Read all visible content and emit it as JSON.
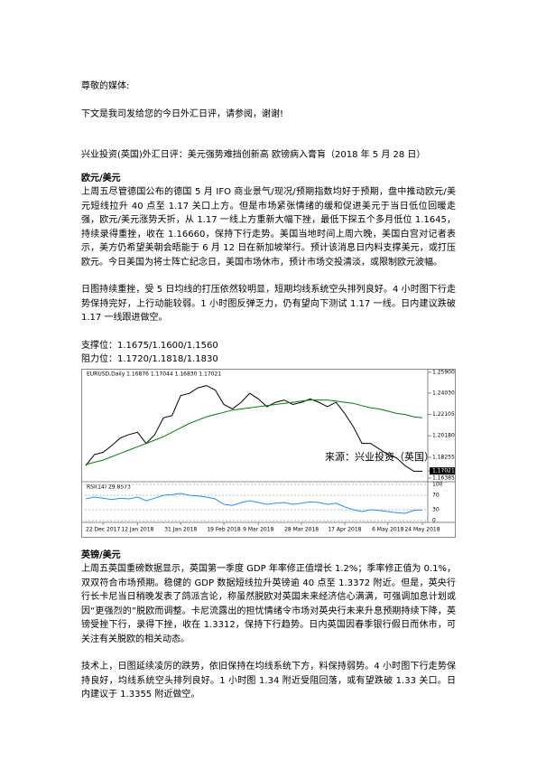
{
  "greeting": "尊敬的媒体:",
  "intro": "下文是我司发给您的今日外汇日评，请参阅，谢谢!",
  "headline": "兴业投资(英国)外汇日评：美元强势难挡创新高 欧镑病入膏肓（2018 年 5 月 28 日）",
  "sections": [
    {
      "heading": "欧元/美元",
      "paragraphs": [
        "上周五尽管德国公布的德国 5 月 IFO 商业景气/现况/预期指数均好于预期，盘中推动欧元/美元短线拉升 40 点至 1.17 关口上方。但是市场紧张情绪的缓和促进美元于当日低位回暖走强，欧元/美元涨势夭折，从 1.17 一线上方重新大幅下挫，最低下探五个多月低位 1.1645，持续录得重挫，收在 1.16660，保持下行走势。美国当地时间上周六晚，美国白宫对记者表示，美方仍希望美朝会晤能于 6 月 12 日在新加坡举行。预计该消息日内料支撑美元，或打压欧元。今日美国为将士阵亡纪念日，美国市场休市，预计市场交投清淡，或限制欧元波幅。",
        "日图持续重挫，受 5 日均线的打压依然较明显，短期均线系统空头排列良好。4 小时图下行走势保持完好，上行动能较弱。1 小时图反弹乏力，仍有望向下测试 1.17 一线。日内建议跌破 1.17 一线跟进做空。"
      ],
      "levels": [
        "支撑位：1.1675/1.1600/1.1560",
        "阻力位：1.1720/1.1818/1.1830"
      ]
    },
    {
      "heading": "英镑/美元",
      "paragraphs": [
        "上周五英国重磅数据显示，英国第一季度 GDP 年率修正值增长 1.2%；季率修正值为 0.1%，双双符合市场预期。稳健的 GDP 数据短线拉升英镑逾 40 点至 1.3372 附近。但是，英央行行长卡尼当日稍晚发表了鸽派言论，称虽然脱欧对英国未来经济信心满满，可强调加息计划或因“更强烈的”脱欧而调整。卡尼流露出的担忧情绪令市场对英央行未来升息预期持续下降，英镑受挫下行，录得下挫，收在 1.3312，保持下行趋势。日内英国因春季银行假日而休市，可关注有关脱欧的相关动态。",
        "技术上，日图延续凌厉的跌势，依旧保持在均线系统下方，料保持弱势。4 小时图下行走势保持良好，均线系统空头排列良好。1 小时图 1.34 附近受阻回落，或有望跌破 1.33 关口。日内建议于 1.3355 附近做空。"
      ]
    }
  ],
  "chart_data": {
    "type": "line",
    "title": "EURUSD,Daily 1.16876 1.17044 1.16830 1.17021",
    "annotation": "来源：兴业投资（英国）",
    "rsi_title": "RSI(14) 29.8573",
    "xticks": [
      {
        "value": 2,
        "label": "22 Dec 2017"
      },
      {
        "value": 6,
        "label": "12 Jan 2018"
      },
      {
        "value": 11,
        "label": "31 Jan 2018"
      },
      {
        "value": 16,
        "label": "19 Feb 2018"
      },
      {
        "value": 20,
        "label": "9 Mar 2018"
      },
      {
        "value": 25,
        "label": "28 Mar 2018"
      },
      {
        "value": 30,
        "label": "17 Apr 2018"
      },
      {
        "value": 35,
        "label": "6 May 2018"
      },
      {
        "value": 39,
        "label": "24 May 2018"
      }
    ],
    "xlim": [
      0,
      39
    ],
    "ylim": [
      1.163,
      1.2605
    ],
    "yticks": [
      {
        "value": 1.259,
        "label": "1.25900"
      },
      {
        "value": 1.2403,
        "label": "1.24030"
      },
      {
        "value": 1.22105,
        "label": "1.22105"
      },
      {
        "value": 1.2018,
        "label": "1.20180"
      },
      {
        "value": 1.18255,
        "label": "1.18255"
      },
      {
        "value": 1.17021,
        "label": "1.17021"
      },
      {
        "value": 1.16385,
        "label": "1.16385"
      }
    ],
    "series": [
      {
        "name": "EURUSD",
        "color": "#000000",
        "values": [
          1.175,
          1.185,
          1.187,
          1.193,
          1.2,
          1.203,
          1.205,
          1.195,
          1.203,
          1.218,
          1.22,
          1.238,
          1.24,
          1.245,
          1.247,
          1.243,
          1.23,
          1.226,
          1.232,
          1.24,
          1.235,
          1.228,
          1.232,
          1.234,
          1.23,
          1.232,
          1.235,
          1.232,
          1.228,
          1.232,
          1.222,
          1.21,
          1.195,
          1.195,
          1.19,
          1.185,
          1.182,
          1.175,
          1.17,
          1.17
        ]
      },
      {
        "name": "MA",
        "color": "#008000",
        "values": [
          1.176,
          1.178,
          1.18,
          1.183,
          1.186,
          1.189,
          1.192,
          1.195,
          1.198,
          1.201,
          1.205,
          1.209,
          1.213,
          1.216,
          1.219,
          1.221,
          1.223,
          1.225,
          1.226,
          1.227,
          1.228,
          1.229,
          1.23,
          1.231,
          1.232,
          1.233,
          1.234,
          1.234,
          1.234,
          1.233,
          1.232,
          1.231,
          1.229,
          1.227,
          1.226,
          1.224,
          1.222,
          1.221,
          1.219,
          1.218
        ]
      }
    ],
    "rsi": {
      "color": "#1e90ff",
      "ylim": [
        0,
        100
      ],
      "yticks": [
        100,
        70,
        30,
        0
      ],
      "values": [
        60,
        65,
        62,
        58,
        62,
        60,
        65,
        55,
        62,
        70,
        72,
        75,
        70,
        68,
        65,
        60,
        45,
        42,
        50,
        55,
        50,
        45,
        48,
        50,
        45,
        48,
        52,
        50,
        45,
        48,
        38,
        30,
        25,
        30,
        28,
        25,
        22,
        20,
        28,
        29.8573
      ]
    }
  }
}
